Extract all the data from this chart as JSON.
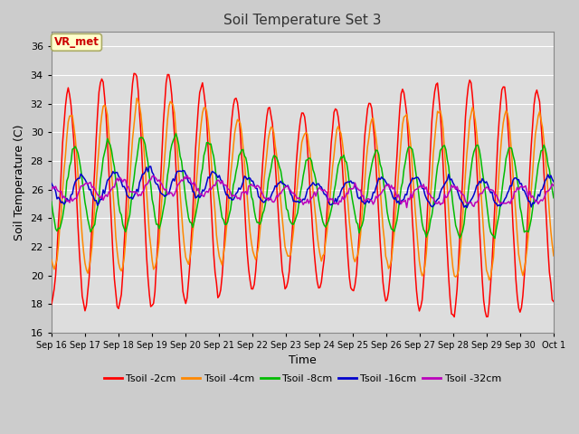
{
  "title": "Soil Temperature Set 3",
  "xlabel": "Time",
  "ylabel": "Soil Temperature (C)",
  "ylim": [
    16,
    37
  ],
  "yticks": [
    16,
    18,
    20,
    22,
    24,
    26,
    28,
    30,
    32,
    34,
    36
  ],
  "background_color": "#cccccc",
  "plot_bg_color": "#dddddd",
  "grid_color": "#ffffff",
  "annotation_text": "VR_met",
  "annotation_bg": "#ffffcc",
  "annotation_border": "#aaaa66",
  "series": [
    {
      "label": "Tsoil -2cm",
      "color": "#ff0000",
      "amp": 7.2,
      "lag": 0.0,
      "base": 0.0
    },
    {
      "label": "Tsoil -4cm",
      "color": "#ff8800",
      "amp": 5.2,
      "lag": 0.08,
      "base": 0.4
    },
    {
      "label": "Tsoil -8cm",
      "color": "#00bb00",
      "amp": 2.8,
      "lag": 0.2,
      "base": 0.6
    },
    {
      "label": "Tsoil -16cm",
      "color": "#0000cc",
      "amp": 0.85,
      "lag": 0.38,
      "base": 0.5
    },
    {
      "label": "Tsoil -32cm",
      "color": "#bb00bb",
      "amp": 0.55,
      "lag": 0.55,
      "base": 0.3
    }
  ],
  "x_tick_labels": [
    "Sep 16",
    "Sep 17",
    "Sep 18",
    "Sep 19",
    "Sep 20",
    "Sep 21",
    "Sep 22",
    "Sep 23",
    "Sep 24",
    "Sep 25",
    "Sep 26",
    "Sep 27",
    "Sep 28",
    "Sep 29",
    "Sep 30",
    "Oct 1"
  ],
  "figsize": [
    6.4,
    4.8
  ],
  "dpi": 100
}
